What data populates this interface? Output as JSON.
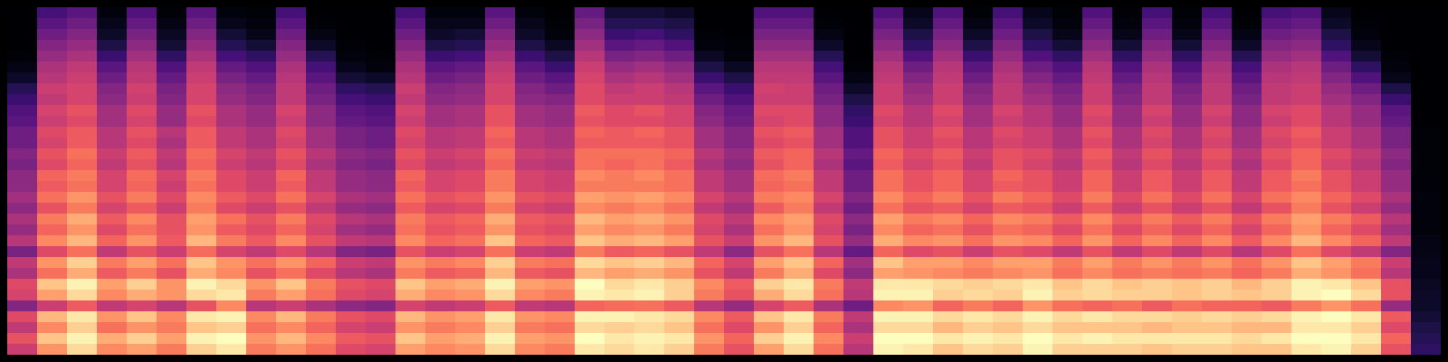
{
  "chart_data": {
    "type": "heatmap",
    "tick_labels": false,
    "color": "magma",
    "zlim": [
      0,
      80
    ],
    "z": [
      [
        44,
        50,
        42,
        48,
        30,
        46,
        48,
        38,
        42,
        28,
        40,
        34,
        38,
        32,
        36,
        32,
        32,
        28,
        30,
        26,
        26,
        22,
        20,
        16,
        12,
        6,
        3,
        1,
        0,
        0,
        0,
        0
      ],
      [
        62,
        70,
        60,
        68,
        44,
        64,
        70,
        56,
        62,
        48,
        60,
        54,
        58,
        50,
        56,
        52,
        54,
        48,
        50,
        46,
        48,
        44,
        46,
        42,
        44,
        40,
        38,
        34,
        30,
        26,
        22,
        18
      ],
      [
        74,
        78,
        72,
        76,
        52,
        74,
        78,
        66,
        72,
        56,
        68,
        62,
        66,
        58,
        62,
        56,
        58,
        54,
        56,
        52,
        52,
        48,
        50,
        46,
        46,
        44,
        42,
        38,
        34,
        30,
        26,
        22
      ],
      [
        60,
        66,
        56,
        62,
        42,
        60,
        64,
        52,
        58,
        42,
        54,
        48,
        52,
        46,
        50,
        46,
        46,
        42,
        44,
        40,
        40,
        36,
        36,
        32,
        30,
        26,
        22,
        16,
        10,
        6,
        4,
        2
      ],
      [
        64,
        72,
        62,
        70,
        46,
        66,
        72,
        58,
        64,
        50,
        62,
        56,
        60,
        52,
        58,
        54,
        55,
        50,
        52,
        48,
        50,
        46,
        48,
        44,
        45,
        42,
        40,
        36,
        32,
        28,
        24,
        20
      ],
      [
        58,
        64,
        58,
        60,
        40,
        62,
        62,
        50,
        56,
        44,
        52,
        50,
        50,
        44,
        48,
        44,
        46,
        40,
        42,
        38,
        40,
        34,
        34,
        30,
        28,
        24,
        20,
        14,
        8,
        5,
        3,
        1
      ],
      [
        72,
        78,
        70,
        76,
        50,
        74,
        78,
        66,
        70,
        55,
        68,
        62,
        64,
        58,
        60,
        56,
        58,
        54,
        55,
        52,
        52,
        48,
        50,
        46,
        46,
        44,
        42,
        38,
        34,
        30,
        26,
        22
      ],
      [
        76,
        80,
        72,
        78,
        60,
        76,
        74,
        60,
        62,
        46,
        58,
        52,
        56,
        48,
        52,
        48,
        48,
        44,
        46,
        42,
        42,
        38,
        38,
        34,
        32,
        28,
        24,
        18,
        12,
        8,
        4,
        2
      ],
      [
        58,
        62,
        56,
        60,
        40,
        58,
        62,
        50,
        56,
        42,
        52,
        48,
        50,
        44,
        48,
        44,
        44,
        40,
        42,
        38,
        38,
        34,
        34,
        30,
        28,
        24,
        20,
        14,
        8,
        4,
        2,
        1
      ],
      [
        62,
        68,
        60,
        68,
        44,
        64,
        70,
        56,
        62,
        48,
        60,
        54,
        58,
        50,
        56,
        52,
        54,
        48,
        50,
        46,
        48,
        44,
        46,
        42,
        42,
        40,
        38,
        34,
        30,
        26,
        22,
        18
      ],
      [
        56,
        60,
        54,
        58,
        38,
        56,
        58,
        48,
        54,
        40,
        50,
        46,
        48,
        42,
        46,
        42,
        42,
        38,
        40,
        36,
        36,
        32,
        32,
        28,
        26,
        22,
        18,
        12,
        6,
        3,
        1,
        0
      ],
      [
        48,
        52,
        46,
        50,
        32,
        48,
        50,
        40,
        44,
        30,
        42,
        36,
        40,
        34,
        38,
        34,
        34,
        30,
        32,
        28,
        28,
        24,
        22,
        18,
        14,
        8,
        4,
        2,
        1,
        0,
        0,
        0
      ],
      [
        46,
        50,
        44,
        48,
        30,
        46,
        48,
        38,
        42,
        28,
        40,
        34,
        38,
        32,
        36,
        32,
        32,
        28,
        30,
        26,
        26,
        22,
        20,
        16,
        12,
        6,
        2,
        1,
        0,
        0,
        0,
        0
      ],
      [
        64,
        70,
        62,
        68,
        46,
        66,
        70,
        58,
        62,
        50,
        60,
        56,
        58,
        52,
        56,
        52,
        54,
        48,
        50,
        46,
        48,
        44,
        46,
        42,
        44,
        40,
        38,
        34,
        30,
        26,
        22,
        18
      ],
      [
        60,
        64,
        58,
        62,
        42,
        60,
        64,
        52,
        58,
        44,
        54,
        50,
        52,
        46,
        50,
        46,
        46,
        42,
        44,
        40,
        40,
        36,
        36,
        32,
        30,
        26,
        22,
        16,
        10,
        6,
        4,
        2
      ],
      [
        62,
        66,
        60,
        64,
        44,
        62,
        66,
        54,
        60,
        46,
        56,
        52,
        54,
        48,
        52,
        48,
        48,
        44,
        46,
        42,
        42,
        38,
        38,
        34,
        32,
        28,
        24,
        18,
        12,
        8,
        4,
        2
      ],
      [
        74,
        78,
        72,
        76,
        52,
        74,
        78,
        68,
        72,
        56,
        70,
        62,
        66,
        58,
        62,
        58,
        58,
        54,
        56,
        52,
        54,
        50,
        50,
        46,
        46,
        44,
        42,
        38,
        34,
        30,
        26,
        22
      ],
      [
        60,
        64,
        58,
        62,
        42,
        60,
        64,
        52,
        58,
        44,
        54,
        50,
        52,
        46,
        50,
        46,
        46,
        42,
        44,
        40,
        40,
        36,
        36,
        32,
        30,
        26,
        22,
        16,
        10,
        6,
        4,
        2
      ],
      [
        58,
        62,
        56,
        60,
        40,
        58,
        62,
        50,
        56,
        42,
        52,
        48,
        50,
        44,
        48,
        44,
        44,
        40,
        42,
        38,
        38,
        34,
        34,
        30,
        26,
        22,
        16,
        10,
        5,
        2,
        1,
        0
      ],
      [
        76,
        80,
        74,
        78,
        54,
        78,
        80,
        68,
        74,
        58,
        70,
        64,
        68,
        60,
        64,
        58,
        60,
        56,
        56,
        52,
        54,
        50,
        52,
        48,
        48,
        46,
        44,
        40,
        36,
        32,
        28,
        24
      ],
      [
        74,
        76,
        72,
        78,
        55,
        76,
        74,
        64,
        70,
        52,
        66,
        60,
        64,
        58,
        62,
        58,
        58,
        54,
        56,
        52,
        52,
        48,
        48,
        44,
        42,
        38,
        34,
        28,
        22,
        16,
        12,
        8
      ],
      [
        76,
        78,
        74,
        76,
        56,
        78,
        76,
        66,
        72,
        54,
        68,
        62,
        66,
        60,
        64,
        58,
        60,
        56,
        56,
        52,
        54,
        48,
        50,
        44,
        44,
        40,
        36,
        30,
        24,
        18,
        12,
        8
      ],
      [
        72,
        76,
        70,
        74,
        52,
        72,
        72,
        62,
        68,
        50,
        64,
        58,
        62,
        56,
        60,
        56,
        56,
        52,
        54,
        50,
        50,
        46,
        46,
        42,
        40,
        36,
        32,
        26,
        20,
        14,
        10,
        6
      ],
      [
        58,
        62,
        56,
        60,
        40,
        58,
        60,
        50,
        54,
        42,
        50,
        46,
        48,
        42,
        46,
        42,
        42,
        38,
        40,
        36,
        36,
        32,
        30,
        26,
        22,
        16,
        10,
        5,
        2,
        1,
        0,
        0
      ],
      [
        50,
        54,
        48,
        52,
        34,
        50,
        52,
        42,
        46,
        32,
        44,
        38,
        42,
        36,
        40,
        36,
        36,
        32,
        34,
        30,
        30,
        26,
        24,
        20,
        16,
        10,
        5,
        2,
        1,
        0,
        0,
        0
      ],
      [
        64,
        72,
        62,
        70,
        46,
        66,
        72,
        58,
        64,
        50,
        62,
        56,
        60,
        52,
        58,
        54,
        55,
        50,
        52,
        48,
        50,
        46,
        48,
        44,
        45,
        42,
        40,
        36,
        32,
        28,
        24,
        20
      ],
      [
        74,
        78,
        72,
        76,
        52,
        74,
        76,
        66,
        70,
        56,
        68,
        62,
        64,
        58,
        60,
        56,
        58,
        54,
        54,
        50,
        52,
        48,
        48,
        44,
        44,
        42,
        40,
        36,
        32,
        28,
        24,
        20
      ],
      [
        56,
        60,
        54,
        58,
        38,
        56,
        58,
        48,
        54,
        40,
        50,
        46,
        48,
        42,
        46,
        42,
        42,
        38,
        40,
        36,
        36,
        32,
        32,
        28,
        26,
        22,
        18,
        12,
        6,
        3,
        1,
        0
      ],
      [
        40,
        44,
        38,
        42,
        26,
        40,
        42,
        32,
        36,
        24,
        34,
        28,
        32,
        26,
        30,
        26,
        26,
        22,
        24,
        20,
        20,
        16,
        14,
        10,
        6,
        3,
        1,
        0,
        0,
        0,
        0,
        0
      ],
      [
        78,
        80,
        74,
        78,
        60,
        78,
        76,
        64,
        70,
        54,
        66,
        60,
        64,
        56,
        60,
        56,
        56,
        52,
        54,
        50,
        50,
        46,
        48,
        44,
        44,
        42,
        40,
        36,
        32,
        28,
        24,
        20
      ],
      [
        76,
        80,
        74,
        78,
        62,
        78,
        76,
        62,
        64,
        48,
        60,
        54,
        58,
        50,
        54,
        50,
        50,
        46,
        48,
        44,
        44,
        40,
        40,
        36,
        34,
        30,
        26,
        20,
        14,
        10,
        6,
        4
      ],
      [
        70,
        76,
        68,
        74,
        54,
        72,
        74,
        60,
        64,
        50,
        62,
        56,
        60,
        52,
        58,
        54,
        54,
        50,
        52,
        48,
        50,
        46,
        48,
        44,
        44,
        42,
        40,
        36,
        32,
        28,
        24,
        20
      ],
      [
        74,
        78,
        72,
        76,
        58,
        74,
        72,
        58,
        60,
        44,
        56,
        50,
        54,
        46,
        50,
        46,
        46,
        42,
        44,
        40,
        40,
        36,
        36,
        32,
        30,
        26,
        22,
        16,
        10,
        6,
        3,
        1
      ],
      [
        72,
        76,
        70,
        74,
        54,
        72,
        74,
        60,
        64,
        50,
        62,
        56,
        60,
        52,
        58,
        52,
        54,
        50,
        50,
        46,
        48,
        44,
        46,
        42,
        42,
        40,
        38,
        34,
        30,
        26,
        22,
        18
      ],
      [
        78,
        80,
        74,
        78,
        62,
        78,
        76,
        62,
        64,
        48,
        60,
        54,
        58,
        50,
        54,
        50,
        50,
        46,
        48,
        44,
        44,
        40,
        40,
        36,
        34,
        30,
        26,
        20,
        14,
        10,
        6,
        4
      ],
      [
        72,
        76,
        70,
        74,
        56,
        72,
        70,
        56,
        58,
        42,
        54,
        48,
        52,
        44,
        48,
        44,
        44,
        40,
        42,
        38,
        38,
        34,
        34,
        30,
        28,
        24,
        20,
        14,
        8,
        4,
        2,
        1
      ],
      [
        72,
        78,
        70,
        76,
        54,
        74,
        74,
        60,
        64,
        50,
        62,
        56,
        60,
        52,
        58,
        54,
        54,
        50,
        52,
        48,
        50,
        46,
        48,
        44,
        44,
        42,
        40,
        36,
        32,
        28,
        24,
        20
      ],
      [
        72,
        76,
        70,
        74,
        56,
        72,
        70,
        56,
        58,
        42,
        54,
        48,
        52,
        44,
        48,
        44,
        44,
        40,
        42,
        38,
        38,
        34,
        34,
        30,
        28,
        24,
        20,
        14,
        8,
        4,
        2,
        1
      ],
      [
        70,
        76,
        68,
        74,
        52,
        72,
        72,
        58,
        62,
        48,
        60,
        54,
        58,
        50,
        56,
        52,
        52,
        48,
        50,
        46,
        48,
        44,
        46,
        42,
        42,
        40,
        38,
        34,
        30,
        26,
        22,
        18
      ],
      [
        72,
        76,
        70,
        72,
        56,
        70,
        70,
        56,
        58,
        42,
        54,
        48,
        52,
        44,
        48,
        44,
        44,
        40,
        42,
        38,
        38,
        34,
        34,
        30,
        28,
        24,
        20,
        14,
        8,
        4,
        2,
        1
      ],
      [
        72,
        76,
        70,
        74,
        54,
        72,
        72,
        58,
        62,
        48,
        60,
        54,
        58,
        50,
        56,
        52,
        52,
        48,
        50,
        46,
        48,
        44,
        46,
        42,
        42,
        40,
        38,
        34,
        30,
        26,
        22,
        18
      ],
      [
        70,
        74,
        68,
        72,
        54,
        70,
        68,
        54,
        56,
        40,
        52,
        46,
        50,
        42,
        46,
        42,
        42,
        38,
        40,
        36,
        36,
        32,
        32,
        28,
        26,
        22,
        18,
        12,
        6,
        3,
        1,
        0
      ],
      [
        70,
        76,
        68,
        74,
        52,
        72,
        72,
        58,
        62,
        48,
        60,
        54,
        58,
        50,
        56,
        52,
        52,
        48,
        50,
        46,
        48,
        44,
        46,
        42,
        42,
        40,
        38,
        34,
        30,
        26,
        22,
        18
      ],
      [
        76,
        80,
        76,
        78,
        58,
        78,
        78,
        66,
        70,
        56,
        68,
        62,
        64,
        58,
        60,
        56,
        58,
        54,
        54,
        50,
        52,
        48,
        48,
        44,
        44,
        42,
        40,
        36,
        32,
        28,
        24,
        20
      ],
      [
        78,
        80,
        76,
        80,
        62,
        80,
        76,
        62,
        64,
        48,
        60,
        54,
        58,
        50,
        54,
        50,
        50,
        46,
        48,
        44,
        44,
        40,
        40,
        36,
        34,
        30,
        26,
        20,
        14,
        10,
        6,
        4
      ],
      [
        72,
        76,
        72,
        76,
        56,
        74,
        70,
        56,
        58,
        42,
        54,
        48,
        52,
        44,
        48,
        44,
        44,
        40,
        42,
        38,
        38,
        34,
        34,
        30,
        26,
        20,
        14,
        8,
        4,
        2,
        1,
        0
      ],
      [
        50,
        54,
        48,
        52,
        34,
        50,
        50,
        40,
        44,
        30,
        42,
        36,
        40,
        34,
        38,
        34,
        34,
        30,
        32,
        28,
        28,
        24,
        22,
        16,
        10,
        4,
        2,
        1,
        0,
        0,
        0,
        0
      ],
      [
        14,
        12,
        10,
        8,
        6,
        6,
        5,
        4,
        4,
        3,
        3,
        2,
        2,
        2,
        2,
        1,
        1,
        1,
        1,
        1,
        1,
        0,
        0,
        0,
        0,
        0,
        0,
        0,
        0,
        0,
        0,
        0
      ]
    ]
  }
}
